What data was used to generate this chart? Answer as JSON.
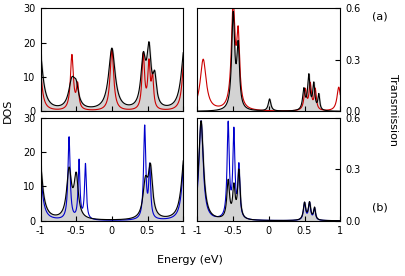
{
  "xlim": [
    -1,
    1
  ],
  "dos_ylim": [
    0,
    30
  ],
  "trans_ylim": [
    0,
    0.6
  ],
  "dos_yticks": [
    0,
    10,
    20,
    30
  ],
  "trans_yticks": [
    0,
    0.3,
    0.6
  ],
  "xticks": [
    -1,
    -0.5,
    0,
    0.5,
    1
  ],
  "xlabel": "Energy (eV)",
  "ylabel_left": "DOS",
  "ylabel_right": "Transmission",
  "label_a": "(a)",
  "label_b": "(b)",
  "color_black": "#000000",
  "color_red": "#cc0000",
  "color_blue": "#0000cc",
  "color_fill": "#d3d3d3",
  "linewidth": 0.8
}
